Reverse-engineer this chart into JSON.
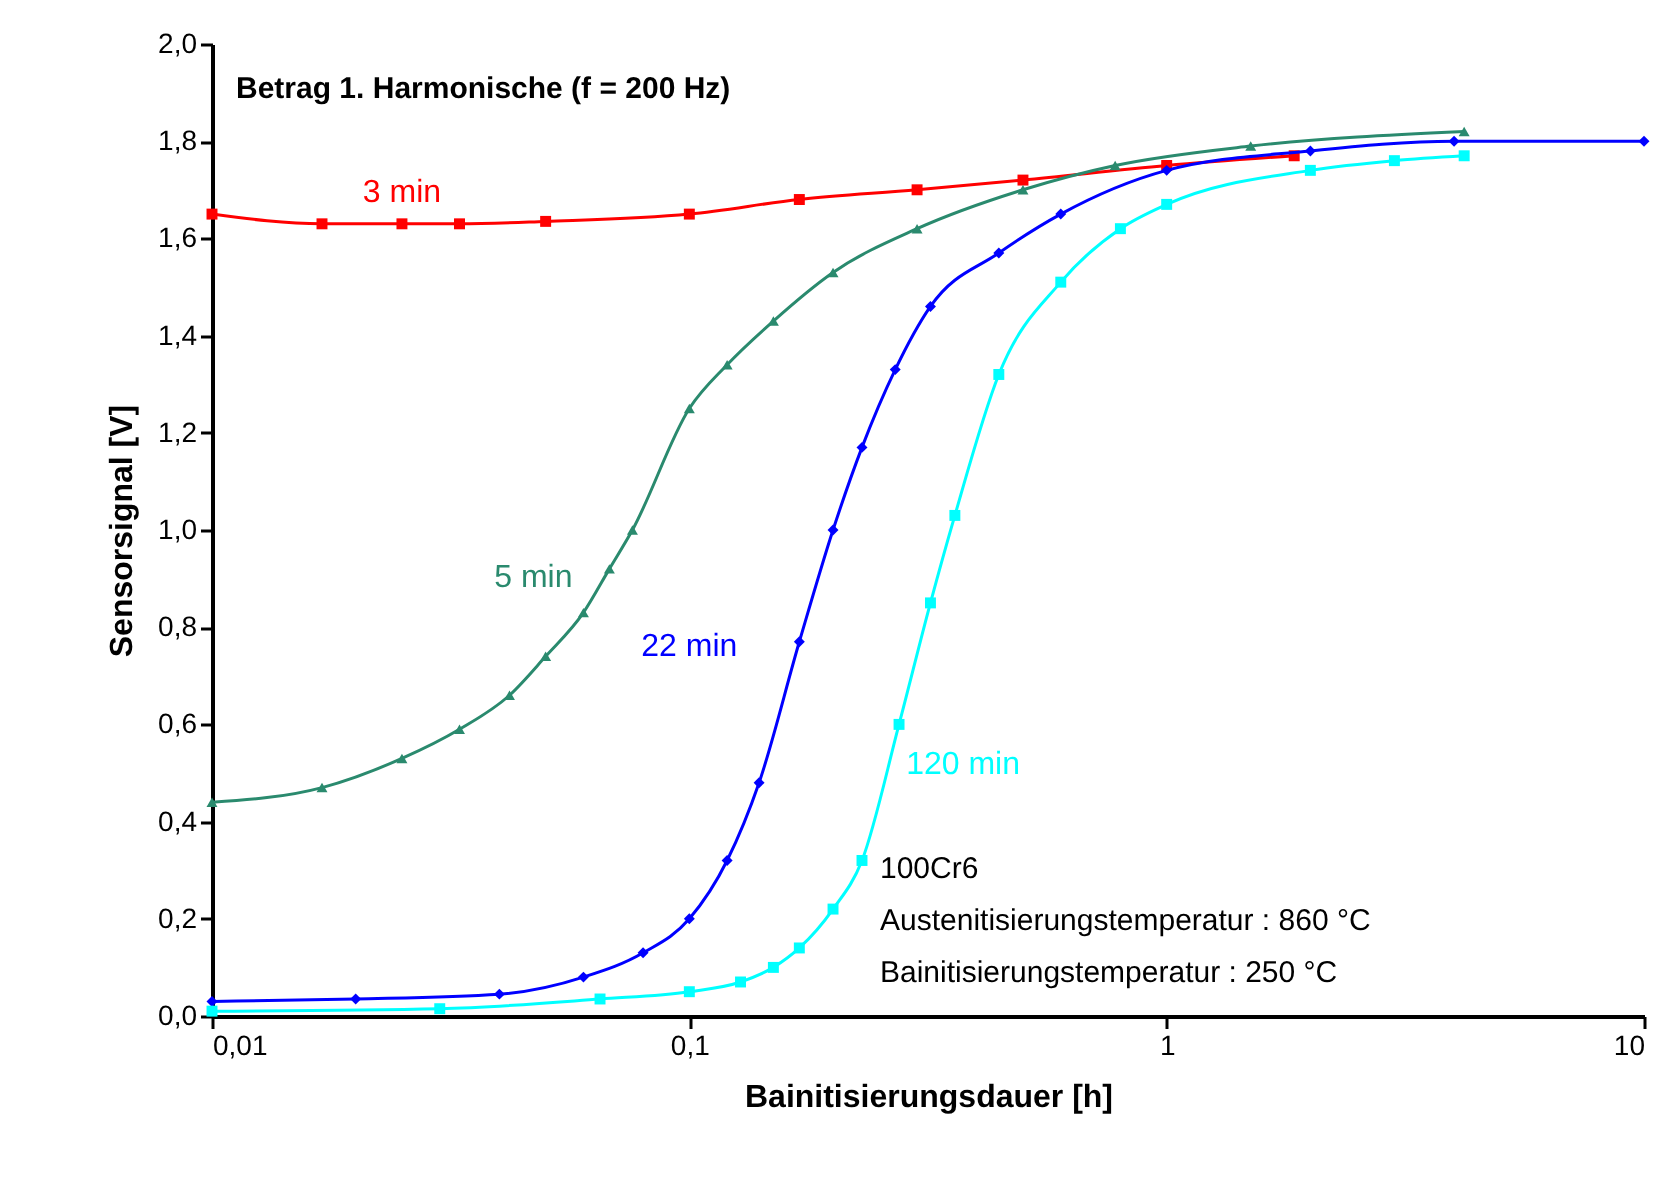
{
  "chart_data": {
    "type": "line",
    "title": "Betrag 1. Harmonische (f = 200 Hz)",
    "xlabel": "Bainitisierungsdauer [h]",
    "ylabel": "Sensorsignal [V]",
    "log": "x",
    "xlim": [
      0.01,
      10
    ],
    "ylim": [
      0,
      2
    ],
    "xticks": [
      {
        "value": 0.01,
        "label": "0,01"
      },
      {
        "value": 0.1,
        "label": "0,1"
      },
      1,
      10
    ],
    "yticks": [
      {
        "value": 0,
        "label": "0,0"
      },
      {
        "value": 0.2,
        "label": "0,2"
      },
      {
        "value": 0.4,
        "label": "0,4"
      },
      {
        "value": 0.6,
        "label": "0,6"
      },
      {
        "value": 0.8,
        "label": "0,8"
      },
      {
        "value": 1,
        "label": "1,0"
      },
      {
        "value": 1.2,
        "label": "1,2"
      },
      {
        "value": 1.4,
        "label": "1,4"
      },
      {
        "value": 1.6,
        "label": "1,6"
      },
      {
        "value": 1.8,
        "label": "1,8"
      },
      {
        "value": 2,
        "label": "2,0"
      }
    ],
    "grid": false,
    "annotations": [
      "100Cr6",
      "Austenitisierungstemperatur   : 860  °C",
      "Bainitisierungstemperatur   : 250  °C"
    ],
    "series": [
      {
        "name": "3 min",
        "color": "#ff0000",
        "marker": "square",
        "x": [
          0.01,
          0.017,
          0.025,
          0.033,
          0.05,
          0.1,
          0.17,
          0.3,
          0.5,
          1,
          1.85
        ],
        "values": [
          1.65,
          1.63,
          1.63,
          1.63,
          1.635,
          1.65,
          1.68,
          1.7,
          1.72,
          1.75,
          1.77
        ]
      },
      {
        "name": "5 min",
        "color": "#2a8a6e",
        "marker": "triangle",
        "x": [
          0.01,
          0.017,
          0.025,
          0.033,
          0.042,
          0.05,
          0.06,
          0.068,
          0.076,
          0.1,
          0.12,
          0.15,
          0.2,
          0.3,
          0.5,
          0.78,
          1.5,
          4.2
        ],
        "values": [
          0.44,
          0.47,
          0.53,
          0.59,
          0.66,
          0.74,
          0.83,
          0.92,
          1.0,
          1.25,
          1.34,
          1.43,
          1.53,
          1.62,
          1.7,
          1.75,
          1.79,
          1.82
        ]
      },
      {
        "name": "22 min",
        "color": "#0000ff",
        "marker": "diamond",
        "x": [
          0.01,
          0.02,
          0.04,
          0.06,
          0.08,
          0.1,
          0.12,
          0.14,
          0.17,
          0.2,
          0.23,
          0.27,
          0.32,
          0.445,
          0.6,
          1,
          2,
          4,
          10
        ],
        "values": [
          0.03,
          0.035,
          0.045,
          0.08,
          0.13,
          0.2,
          0.32,
          0.48,
          0.77,
          1,
          1.17,
          1.33,
          1.46,
          1.57,
          1.65,
          1.74,
          1.78,
          1.8,
          1.8
        ]
      },
      {
        "name": "120 min",
        "color": "#00ffff",
        "marker": "square",
        "x": [
          0.01,
          0.03,
          0.065,
          0.1,
          0.128,
          0.15,
          0.17,
          0.2,
          0.23,
          0.275,
          0.32,
          0.36,
          0.445,
          0.6,
          0.8,
          1,
          2,
          3,
          4.2
        ],
        "values": [
          0.01,
          0.015,
          0.035,
          0.05,
          0.07,
          0.1,
          0.14,
          0.22,
          0.32,
          0.6,
          0.85,
          1.03,
          1.32,
          1.51,
          1.62,
          1.67,
          1.74,
          1.76,
          1.77
        ]
      }
    ]
  }
}
